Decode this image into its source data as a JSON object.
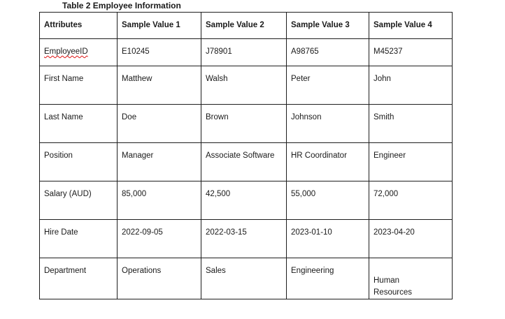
{
  "caption": "Table 2 Employee Information",
  "table": {
    "headers": [
      "Attributes",
      "Sample Value 1",
      "Sample Value 2",
      "Sample Value 3",
      "Sample Value 4"
    ],
    "rows": [
      [
        "EmployeeID",
        "E10245",
        "J78901",
        "A98765",
        "M45237"
      ],
      [
        "First Name",
        "Matthew",
        "Walsh",
        "Peter",
        "John"
      ],
      [
        "Last Name",
        "Doe",
        "Brown",
        "Johnson",
        "Smith"
      ],
      [
        "Position",
        "Manager",
        "Associate Software",
        "HR Coordinator",
        "Engineer"
      ],
      [
        "Salary (AUD)",
        "85,000",
        "42,500",
        "55,000",
        "72,000"
      ],
      [
        "Hire Date",
        "2022-09-05",
        "2022-03-15",
        "2023-01-10",
        "2023-04-20"
      ],
      [
        "Department",
        "Operations",
        "Sales",
        "Engineering",
        "Human Resources"
      ]
    ]
  }
}
